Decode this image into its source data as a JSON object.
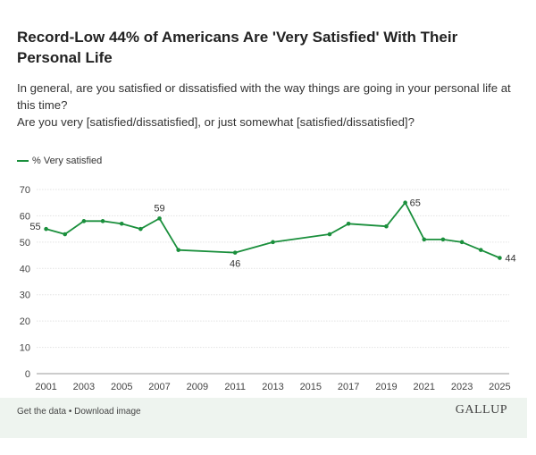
{
  "chart_data": {
    "type": "line",
    "title": "Record-Low 44% of Americans Are 'Very Satisfied' With Their Personal Life",
    "subtitle_lines": [
      "In general, are you satisfied or dissatisfied with the way things are going in your personal life at this time?",
      "Are you very [satisfied/dissatisfied], or just somewhat [satisfied/dissatisfied]?"
    ],
    "xlabel": "",
    "ylabel": "",
    "ylim": [
      0,
      70
    ],
    "yticks": [
      0,
      10,
      20,
      30,
      40,
      50,
      60,
      70
    ],
    "xlim": [
      2000.5,
      2025.5
    ],
    "xticks": [
      2001,
      2003,
      2005,
      2007,
      2009,
      2011,
      2013,
      2015,
      2017,
      2019,
      2021,
      2023,
      2025
    ],
    "grid": true,
    "legend_position": "top-left",
    "series": [
      {
        "name": "% Very satisfied",
        "color": "#1a8f3c",
        "x": [
          2001,
          2002,
          2003,
          2004,
          2005,
          2006,
          2007,
          2008,
          2011,
          2013,
          2016,
          2017,
          2019,
          2020,
          2021,
          2022,
          2023,
          2024,
          2025
        ],
        "values": [
          55,
          53,
          58,
          58,
          57,
          55,
          59,
          47,
          46,
          50,
          53,
          57,
          56,
          65,
          51,
          51,
          50,
          47,
          44
        ],
        "labeled": {
          "2001": "55",
          "2007": "59",
          "2011": "46",
          "2020": "65",
          "2025": "44"
        }
      }
    ]
  },
  "footer": {
    "get_data": "Get the data",
    "separator": " • ",
    "download": "Download image",
    "brand": "GALLUP"
  }
}
